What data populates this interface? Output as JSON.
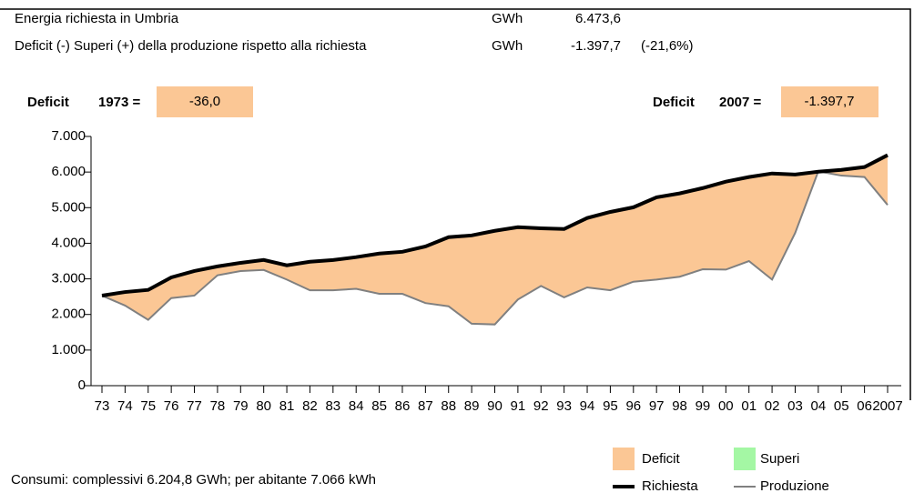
{
  "header": {
    "row1": {
      "label": "Energia richiesta in Umbria",
      "unit": "GWh",
      "value": "6.473,6"
    },
    "row2": {
      "label": "Deficit (-) Superi (+) della produzione rispetto alla richiesta",
      "unit": "GWh",
      "value": "-1.397,7",
      "percent": "(-21,6%)"
    },
    "left_box": {
      "label": "Deficit",
      "year": "1973 =",
      "value": "-36,0"
    },
    "right_box": {
      "label": "Deficit",
      "year": "2007 =",
      "value": "-1.397,7"
    }
  },
  "footer": "Consumi: complessivi 6.204,8 GWh; per abitante 7.066 kWh",
  "chart_data": {
    "type": "area",
    "categories": [
      "73",
      "74",
      "75",
      "76",
      "77",
      "78",
      "79",
      "80",
      "81",
      "82",
      "83",
      "84",
      "85",
      "86",
      "87",
      "88",
      "89",
      "90",
      "91",
      "92",
      "93",
      "94",
      "95",
      "96",
      "97",
      "98",
      "99",
      "00",
      "01",
      "02",
      "03",
      "04",
      "05",
      "06",
      "2007"
    ],
    "series": [
      {
        "name": "Richiesta",
        "color": "#000000",
        "values": [
          2530,
          2630,
          2690,
          3040,
          3220,
          3350,
          3450,
          3530,
          3380,
          3480,
          3530,
          3610,
          3710,
          3760,
          3910,
          4170,
          4220,
          4350,
          4450,
          4420,
          4400,
          4710,
          4880,
          5010,
          5290,
          5400,
          5550,
          5730,
          5860,
          5960,
          5930,
          6010,
          6060,
          6140,
          6474
        ]
      },
      {
        "name": "Produzione",
        "color": "#808080",
        "values": [
          2530,
          2250,
          1850,
          2460,
          2530,
          3100,
          3220,
          3250,
          2980,
          2680,
          2680,
          2720,
          2580,
          2580,
          2320,
          2230,
          1740,
          1720,
          2420,
          2800,
          2480,
          2760,
          2680,
          2920,
          2980,
          3060,
          3270,
          3260,
          3500,
          2980,
          4290,
          6020,
          5900,
          5860,
          5076
        ]
      }
    ],
    "fills": [
      {
        "name": "Deficit",
        "color": "#fbc795"
      },
      {
        "name": "Superi",
        "color": "#a4f7a4"
      }
    ],
    "ylim": [
      0,
      7000
    ],
    "yticks": [
      0,
      {
        "value": 1000,
        "label": "1.000"
      },
      {
        "value": 2000,
        "label": "2.000"
      },
      {
        "value": 3000,
        "label": "3.000"
      },
      {
        "value": 4000,
        "label": "4.000"
      },
      {
        "value": 5000,
        "label": "5.000"
      },
      {
        "value": 6000,
        "label": "6.000"
      },
      {
        "value": 7000,
        "label": "7.000"
      }
    ]
  }
}
